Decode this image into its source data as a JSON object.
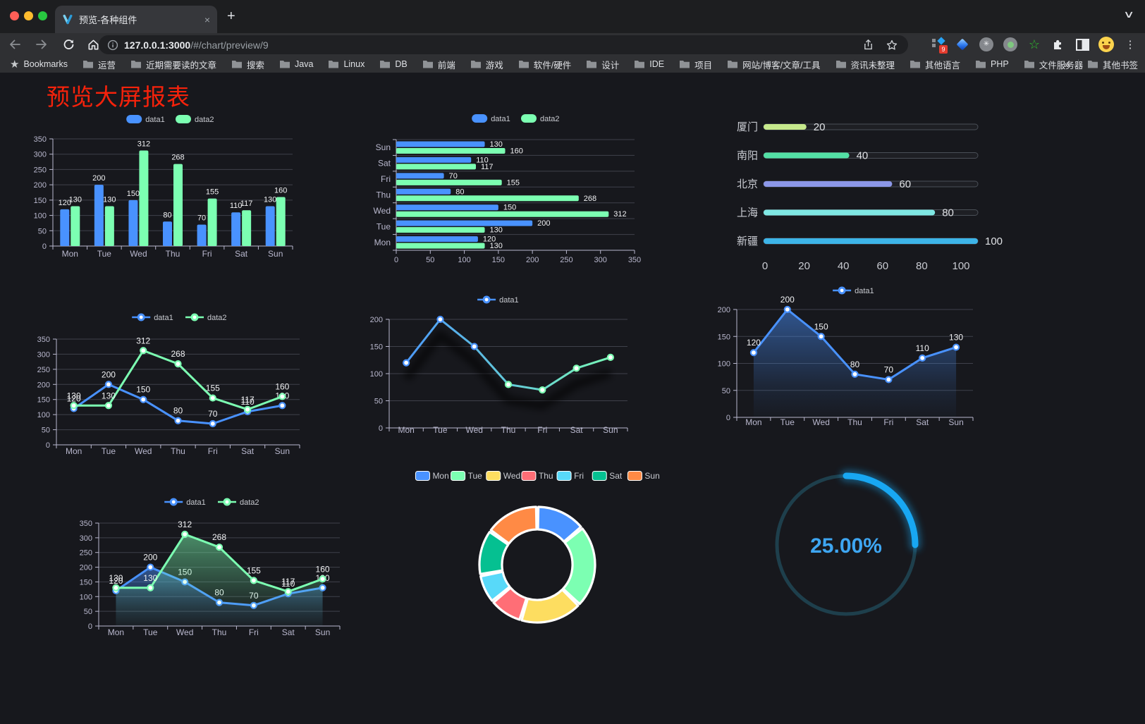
{
  "browser": {
    "tab_title": "预览-各种组件",
    "url_host": "127.0.0.1:3000",
    "url_path": "/#/chart/preview/9",
    "bookmarks_label": "Bookmarks",
    "bookmarks": [
      "运营",
      "近期需要读的文章",
      "搜索",
      "Java",
      "Linux",
      "DB",
      "前端",
      "游戏",
      "软件/硬件",
      "设计",
      "IDE",
      "项目",
      "网站/博客/文章/工具",
      "资讯未整理",
      "其他语言",
      "PHP",
      "文件服务器"
    ],
    "overflow_chevron": "»",
    "other_bookmarks": "其他书签",
    "extensions_badge": "9",
    "extension_icons": [
      "pixel-grid-extension",
      "gem-extension",
      "asterisk-circle-extension",
      "record-circle-extension",
      "star-outline-extension",
      "puzzle-extensions",
      "reader-panel-extension",
      "profile-avatar",
      "menu-dots"
    ],
    "new_tab_label": "+",
    "close_label": "×"
  },
  "page": {
    "title": "预览大屏报表",
    "title_color": "#f5220b",
    "background": "#17181d"
  },
  "theme": {
    "axis_color": "#b9b8ce",
    "grid_color": "#3f414b",
    "value_label_color": "#f0f1f3",
    "legend_text_color": "#c8cad0",
    "data1_color": "#4992ff",
    "data2_color": "#7cffb2"
  },
  "chart_data": [
    {
      "id": "bar-vertical",
      "type": "bar",
      "categories": [
        "Mon",
        "Tue",
        "Wed",
        "Thu",
        "Fri",
        "Sat",
        "Sun"
      ],
      "series": [
        {
          "name": "data1",
          "color": "#4992ff",
          "values": [
            120,
            200,
            150,
            80,
            70,
            110,
            130
          ]
        },
        {
          "name": "data2",
          "color": "#7cffb2",
          "values": [
            130,
            130,
            312,
            268,
            155,
            117,
            160
          ]
        }
      ],
      "ylim": [
        0,
        350
      ],
      "ytick": 50,
      "legend_position": "top",
      "grid": true
    },
    {
      "id": "bar-horizontal",
      "type": "bar-horizontal",
      "categories_top_to_bottom": [
        "Sun",
        "Sat",
        "Fri",
        "Thu",
        "Wed",
        "Tue",
        "Mon"
      ],
      "series": [
        {
          "name": "data1",
          "color": "#4992ff",
          "values_top_to_bottom": [
            130,
            110,
            70,
            80,
            150,
            200,
            120
          ]
        },
        {
          "name": "data2",
          "color": "#7cffb2",
          "values_top_to_bottom": [
            160,
            117,
            155,
            268,
            312,
            130,
            130
          ]
        }
      ],
      "xlim": [
        0,
        350
      ],
      "xtick": 50,
      "legend_position": "top",
      "grid": true
    },
    {
      "id": "progress-list",
      "type": "progress",
      "items": [
        {
          "label": "厦门",
          "value": 20,
          "color": "#c6e98c"
        },
        {
          "label": "南阳",
          "value": 40,
          "color": "#53e0a5"
        },
        {
          "label": "北京",
          "value": 60,
          "color": "#8c97e8"
        },
        {
          "label": "上海",
          "value": 80,
          "color": "#7fe7e3"
        },
        {
          "label": "新疆",
          "value": 100,
          "color": "#3db4e8"
        }
      ],
      "xlim": [
        0,
        100
      ],
      "xticks": [
        0,
        20,
        40,
        60,
        80,
        100
      ]
    },
    {
      "id": "line-dual",
      "type": "line",
      "categories": [
        "Mon",
        "Tue",
        "Wed",
        "Thu",
        "Fri",
        "Sat",
        "Sun"
      ],
      "series": [
        {
          "name": "data1",
          "color": "#4992ff",
          "values": [
            120,
            200,
            150,
            80,
            70,
            110,
            130
          ]
        },
        {
          "name": "data2",
          "color": "#7cffb2",
          "values": [
            130,
            130,
            312,
            268,
            155,
            117,
            160
          ]
        }
      ],
      "ylim": [
        0,
        350
      ],
      "ytick": 50,
      "point_labels": true,
      "legend_position": "top",
      "grid": true
    },
    {
      "id": "line-gradient",
      "type": "line",
      "categories": [
        "Mon",
        "Tue",
        "Wed",
        "Thu",
        "Fri",
        "Sat",
        "Sun"
      ],
      "series": [
        {
          "name": "data1",
          "color": "#4992ff",
          "color_gradient": [
            "#4992ff",
            "#7cffb2"
          ],
          "values": [
            120,
            200,
            150,
            80,
            70,
            110,
            130
          ]
        }
      ],
      "ylim": [
        0,
        200
      ],
      "ytick": 50,
      "point_labels": false,
      "shadow": true,
      "legend_position": "top",
      "grid": true
    },
    {
      "id": "area-single",
      "type": "area",
      "categories": [
        "Mon",
        "Tue",
        "Wed",
        "Thu",
        "Fri",
        "Sat",
        "Sun"
      ],
      "series": [
        {
          "name": "data1",
          "color": "#4992ff",
          "values": [
            120,
            200,
            150,
            80,
            70,
            110,
            130
          ]
        }
      ],
      "ylim": [
        0,
        200
      ],
      "ytick": 50,
      "point_labels": true,
      "legend_position": "top",
      "grid": true
    },
    {
      "id": "area-dual",
      "type": "area",
      "categories": [
        "Mon",
        "Tue",
        "Wed",
        "Thu",
        "Fri",
        "Sat",
        "Sun"
      ],
      "series": [
        {
          "name": "data1",
          "color": "#4992ff",
          "values": [
            120,
            200,
            150,
            80,
            70,
            110,
            130
          ]
        },
        {
          "name": "data2",
          "color": "#7cffb2",
          "values": [
            130,
            130,
            312,
            268,
            155,
            117,
            160
          ]
        }
      ],
      "ylim": [
        0,
        350
      ],
      "ytick": 50,
      "point_labels": true,
      "legend_position": "top",
      "grid": true
    },
    {
      "id": "donut",
      "type": "pie",
      "categories": [
        "Mon",
        "Tue",
        "Wed",
        "Thu",
        "Fri",
        "Sat",
        "Sun"
      ],
      "values": [
        120,
        200,
        150,
        80,
        70,
        110,
        130
      ],
      "colors": [
        "#4992ff",
        "#7cffb2",
        "#fddd60",
        "#ff6e76",
        "#58d9f9",
        "#05c091",
        "#ff8a45"
      ],
      "inner_radius_ratio": 0.61,
      "border_color": "#ffffff",
      "legend_position": "top"
    },
    {
      "id": "gauge",
      "type": "gauge",
      "value": 25,
      "min": 0,
      "max": 100,
      "display": "25.00%",
      "color": "#18a7f2",
      "track_color": "#1e3f4c",
      "text_color": "#3ea6f2"
    }
  ]
}
